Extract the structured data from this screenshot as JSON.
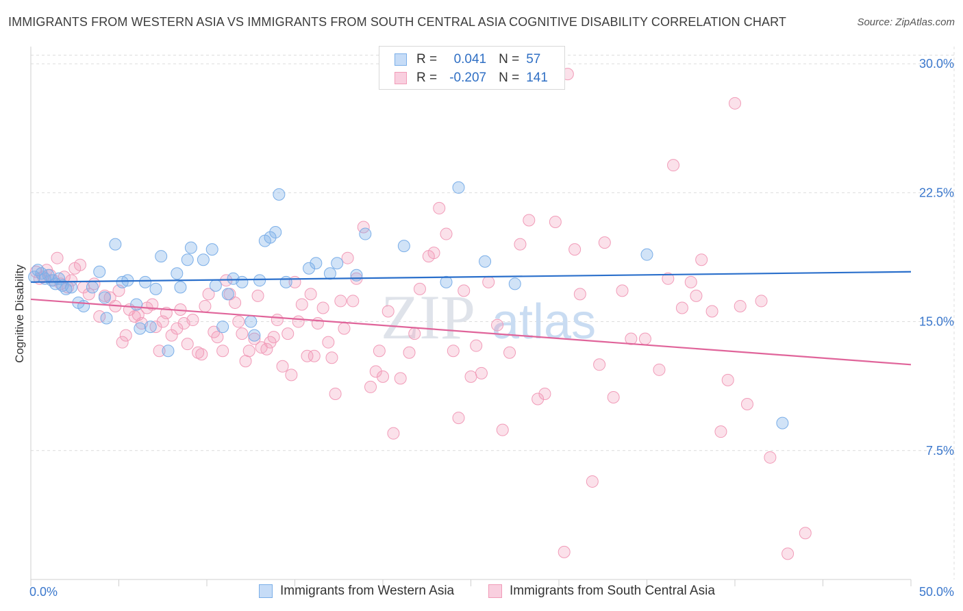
{
  "title": "IMMIGRANTS FROM WESTERN ASIA VS IMMIGRANTS FROM SOUTH CENTRAL ASIA COGNITIVE DISABILITY CORRELATION CHART",
  "source": "Source: ZipAtlas.com",
  "watermark": {
    "zip": "ZIP",
    "atlas": "atlas"
  },
  "legend": {
    "blue": {
      "r_label": "R =",
      "r_value": "0.041",
      "n_label": "N =",
      "n_value": "57"
    },
    "pink": {
      "r_label": "R =",
      "r_value": "-0.207",
      "n_label": "N =",
      "n_value": "141"
    }
  },
  "colors": {
    "blue": "#7aaee8",
    "pink": "#f19bb8",
    "blue_line": "#2a6fcb",
    "pink_line": "#e0649a",
    "axis_text": "#3a77cc"
  },
  "chart_data": {
    "type": "scatter",
    "title": "IMMIGRANTS FROM WESTERN ASIA VS IMMIGRANTS FROM SOUTH CENTRAL ASIA COGNITIVE DISABILITY CORRELATION CHART",
    "xlabel": "",
    "ylabel": "Cognitive Disability",
    "xlim": [
      0,
      50
    ],
    "ylim": [
      0,
      31
    ],
    "x_tick_labels": [
      "0.0%",
      "50.0%"
    ],
    "y_ticks": [
      7.5,
      15.0,
      22.5,
      30.0
    ],
    "y_tick_labels": [
      "7.5%",
      "15.0%",
      "22.5%",
      "30.0%"
    ],
    "grid": true,
    "legend_position": "top-center",
    "series": [
      {
        "name": "Immigrants from Western Asia",
        "color": "#7aaee8",
        "trend": {
          "x0": 0,
          "y0": 17.3,
          "x1": 50,
          "y1": 17.9
        },
        "points": [
          [
            0.2,
            17.6
          ],
          [
            0.4,
            18.0
          ],
          [
            0.6,
            17.8
          ],
          [
            0.8,
            17.5
          ],
          [
            1.0,
            17.7
          ],
          [
            1.2,
            17.4
          ],
          [
            1.4,
            17.2
          ],
          [
            1.6,
            17.5
          ],
          [
            1.8,
            17.1
          ],
          [
            2.0,
            16.9
          ],
          [
            2.3,
            17.0
          ],
          [
            2.7,
            16.1
          ],
          [
            3.0,
            15.9
          ],
          [
            3.5,
            17.0
          ],
          [
            3.9,
            17.9
          ],
          [
            4.2,
            16.4
          ],
          [
            4.3,
            15.2
          ],
          [
            4.8,
            19.5
          ],
          [
            5.2,
            17.3
          ],
          [
            5.5,
            17.4
          ],
          [
            6.0,
            16.0
          ],
          [
            6.2,
            14.6
          ],
          [
            6.5,
            17.3
          ],
          [
            6.8,
            14.7
          ],
          [
            7.1,
            16.9
          ],
          [
            7.4,
            18.8
          ],
          [
            7.8,
            13.3
          ],
          [
            8.3,
            17.8
          ],
          [
            8.5,
            17.0
          ],
          [
            8.9,
            18.6
          ],
          [
            9.1,
            19.3
          ],
          [
            9.8,
            18.6
          ],
          [
            10.3,
            19.2
          ],
          [
            10.5,
            17.1
          ],
          [
            10.9,
            14.7
          ],
          [
            11.2,
            16.6
          ],
          [
            11.5,
            17.5
          ],
          [
            12.0,
            17.3
          ],
          [
            12.5,
            15.0
          ],
          [
            12.7,
            14.2
          ],
          [
            13.0,
            17.4
          ],
          [
            13.3,
            19.7
          ],
          [
            13.6,
            19.9
          ],
          [
            13.9,
            20.2
          ],
          [
            14.1,
            22.4
          ],
          [
            14.5,
            17.3
          ],
          [
            15.8,
            18.1
          ],
          [
            16.2,
            18.4
          ],
          [
            17.0,
            17.8
          ],
          [
            17.4,
            18.4
          ],
          [
            18.5,
            17.7
          ],
          [
            19.0,
            20.1
          ],
          [
            21.2,
            19.4
          ],
          [
            23.6,
            17.3
          ],
          [
            24.3,
            22.8
          ],
          [
            25.8,
            18.5
          ],
          [
            27.5,
            17.2
          ],
          [
            35.0,
            18.9
          ],
          [
            42.7,
            9.1
          ]
        ]
      },
      {
        "name": "Immigrants from South Central Asia",
        "color": "#f19bb8",
        "trend": {
          "x0": 0,
          "y0": 16.3,
          "x1": 50,
          "y1": 12.5
        },
        "points": [
          [
            0.3,
            17.9
          ],
          [
            0.5,
            17.5
          ],
          [
            0.7,
            17.6
          ],
          [
            0.9,
            18.0
          ],
          [
            1.1,
            17.7
          ],
          [
            1.3,
            17.4
          ],
          [
            1.5,
            18.7
          ],
          [
            1.7,
            17.2
          ],
          [
            1.9,
            17.6
          ],
          [
            2.1,
            17.0
          ],
          [
            2.3,
            17.4
          ],
          [
            2.5,
            18.1
          ],
          [
            2.8,
            18.3
          ],
          [
            3.0,
            17.0
          ],
          [
            3.3,
            16.6
          ],
          [
            3.6,
            17.2
          ],
          [
            3.9,
            15.3
          ],
          [
            4.2,
            16.5
          ],
          [
            4.5,
            16.4
          ],
          [
            4.8,
            15.9
          ],
          [
            5.0,
            16.8
          ],
          [
            5.2,
            13.8
          ],
          [
            5.4,
            14.2
          ],
          [
            5.6,
            15.7
          ],
          [
            5.9,
            15.3
          ],
          [
            6.1,
            15.4
          ],
          [
            6.3,
            14.9
          ],
          [
            6.6,
            15.8
          ],
          [
            6.9,
            16.0
          ],
          [
            7.1,
            14.7
          ],
          [
            7.3,
            13.3
          ],
          [
            7.5,
            15.0
          ],
          [
            7.7,
            15.5
          ],
          [
            8.0,
            14.2
          ],
          [
            8.3,
            14.6
          ],
          [
            8.5,
            15.7
          ],
          [
            8.7,
            14.9
          ],
          [
            8.9,
            13.7
          ],
          [
            9.2,
            15.1
          ],
          [
            9.5,
            13.2
          ],
          [
            9.7,
            13.1
          ],
          [
            9.9,
            15.9
          ],
          [
            10.1,
            16.6
          ],
          [
            10.4,
            14.4
          ],
          [
            10.6,
            14.1
          ],
          [
            10.9,
            13.3
          ],
          [
            11.1,
            17.4
          ],
          [
            11.3,
            16.6
          ],
          [
            11.6,
            16.1
          ],
          [
            11.8,
            15.0
          ],
          [
            12.0,
            14.3
          ],
          [
            12.2,
            12.7
          ],
          [
            12.4,
            13.3
          ],
          [
            12.7,
            14.0
          ],
          [
            12.9,
            16.5
          ],
          [
            13.1,
            13.5
          ],
          [
            13.4,
            13.4
          ],
          [
            13.6,
            13.8
          ],
          [
            13.8,
            14.1
          ],
          [
            14.0,
            15.1
          ],
          [
            14.3,
            12.4
          ],
          [
            14.6,
            14.3
          ],
          [
            14.8,
            11.9
          ],
          [
            15.0,
            17.3
          ],
          [
            15.2,
            15.0
          ],
          [
            15.4,
            16.0
          ],
          [
            15.7,
            13.0
          ],
          [
            15.9,
            16.6
          ],
          [
            16.1,
            13.0
          ],
          [
            16.3,
            14.9
          ],
          [
            16.6,
            15.8
          ],
          [
            16.9,
            13.8
          ],
          [
            17.1,
            12.9
          ],
          [
            17.3,
            10.8
          ],
          [
            17.6,
            16.2
          ],
          [
            17.8,
            14.6
          ],
          [
            18.0,
            18.7
          ],
          [
            18.3,
            16.2
          ],
          [
            18.5,
            17.5
          ],
          [
            18.9,
            20.5
          ],
          [
            19.3,
            11.2
          ],
          [
            19.6,
            12.1
          ],
          [
            19.8,
            13.3
          ],
          [
            20.0,
            11.8
          ],
          [
            20.3,
            15.6
          ],
          [
            20.6,
            8.5
          ],
          [
            21.0,
            11.7
          ],
          [
            21.5,
            13.2
          ],
          [
            21.8,
            14.3
          ],
          [
            22.1,
            16.9
          ],
          [
            22.6,
            18.8
          ],
          [
            22.9,
            19.0
          ],
          [
            23.2,
            21.6
          ],
          [
            23.6,
            20.1
          ],
          [
            24.0,
            13.3
          ],
          [
            24.3,
            9.4
          ],
          [
            24.6,
            16.8
          ],
          [
            25.0,
            11.8
          ],
          [
            25.3,
            13.6
          ],
          [
            25.6,
            12.0
          ],
          [
            26.0,
            17.3
          ],
          [
            26.5,
            14.8
          ],
          [
            26.8,
            8.7
          ],
          [
            27.2,
            13.2
          ],
          [
            27.8,
            19.5
          ],
          [
            28.3,
            20.9
          ],
          [
            28.8,
            10.5
          ],
          [
            29.2,
            10.8
          ],
          [
            29.8,
            20.8
          ],
          [
            30.3,
            1.6
          ],
          [
            30.9,
            19.2
          ],
          [
            31.2,
            16.6
          ],
          [
            31.9,
            5.7
          ],
          [
            32.3,
            12.5
          ],
          [
            32.6,
            19.6
          ],
          [
            33.1,
            10.6
          ],
          [
            33.6,
            16.8
          ],
          [
            34.1,
            14.0
          ],
          [
            34.9,
            14.0
          ],
          [
            35.7,
            12.2
          ],
          [
            36.2,
            17.5
          ],
          [
            36.5,
            24.1
          ],
          [
            37.0,
            15.8
          ],
          [
            37.5,
            17.3
          ],
          [
            37.8,
            16.5
          ],
          [
            38.1,
            18.6
          ],
          [
            38.7,
            15.6
          ],
          [
            39.2,
            8.6
          ],
          [
            39.6,
            11.6
          ],
          [
            40.0,
            27.7
          ],
          [
            40.3,
            15.9
          ],
          [
            40.7,
            10.2
          ],
          [
            41.5,
            16.2
          ],
          [
            42.0,
            7.1
          ],
          [
            43.0,
            1.5
          ],
          [
            44.0,
            2.7
          ],
          [
            30.5,
            29.4
          ]
        ]
      }
    ]
  },
  "bottom_legend": {
    "blue": "Immigrants from Western Asia",
    "pink": "Immigrants from South Central Asia"
  }
}
